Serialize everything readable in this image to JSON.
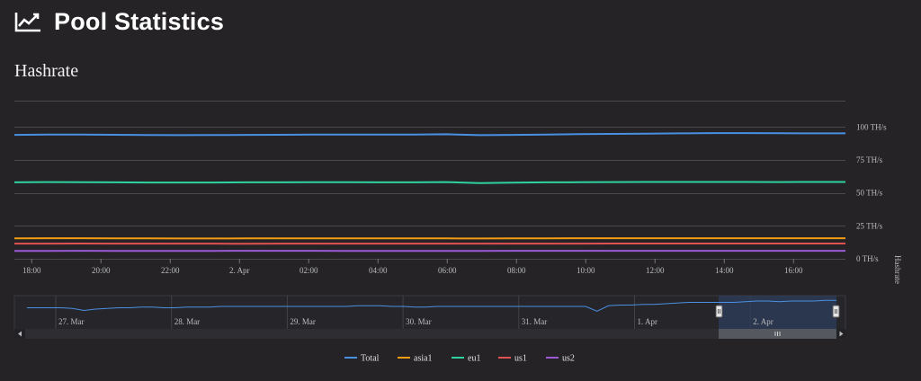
{
  "header": {
    "title": "Pool Statistics",
    "icon": "trending-chart-icon"
  },
  "chart_data": {
    "type": "line",
    "title": "Hashrate",
    "ylabel": "Hashrate",
    "y_unit": "TH/s",
    "ylim": [
      0,
      120
    ],
    "y_ticks": [
      "0 TH/s",
      "25 TH/s",
      "50 TH/s",
      "75 TH/s",
      "100 TH/s"
    ],
    "y_tick_values": [
      0,
      25,
      50,
      75,
      100
    ],
    "x_ticks": [
      "18:00",
      "20:00",
      "22:00",
      "2. Apr",
      "02:00",
      "04:00",
      "06:00",
      "08:00",
      "10:00",
      "12:00",
      "14:00",
      "16:00"
    ],
    "x": [
      "17:30",
      "18:00",
      "19:00",
      "20:00",
      "21:00",
      "22:00",
      "23:00",
      "2. Apr",
      "01:00",
      "02:00",
      "03:00",
      "04:00",
      "05:00",
      "06:00",
      "07:00",
      "08:00",
      "09:00",
      "10:00",
      "11:00",
      "12:00",
      "13:00",
      "14:00",
      "15:00",
      "16:00",
      "17:00",
      "17:30"
    ],
    "series": [
      {
        "name": "Total",
        "color": "#4a90e2",
        "values": [
          94,
          94.3,
          94.2,
          94.1,
          93.9,
          93.8,
          93.9,
          94.0,
          94.1,
          94.2,
          94.3,
          94.2,
          94.3,
          94.5,
          93.8,
          94.0,
          94.3,
          94.6,
          94.8,
          95.0,
          95.2,
          95.4,
          95.4,
          95.3,
          95.2,
          95.2
        ]
      },
      {
        "name": "asia1",
        "color": "#f39c12",
        "values": [
          15.5,
          15.6,
          15.6,
          15.5,
          15.5,
          15.4,
          15.4,
          15.5,
          15.5,
          15.5,
          15.5,
          15.5,
          15.5,
          15.5,
          15.4,
          15.5,
          15.5,
          15.6,
          15.6,
          15.6,
          15.6,
          15.6,
          15.6,
          15.6,
          15.6,
          15.6
        ]
      },
      {
        "name": "eu1",
        "color": "#2fd1a0",
        "values": [
          58,
          58.2,
          58.1,
          58.0,
          57.9,
          57.9,
          57.9,
          58.0,
          58.0,
          58.1,
          58.1,
          58.0,
          58.0,
          58.2,
          57.5,
          57.8,
          58.0,
          58.1,
          58.2,
          58.3,
          58.3,
          58.3,
          58.3,
          58.2,
          58.3,
          58.3
        ]
      },
      {
        "name": "us1",
        "color": "#e05252",
        "values": [
          11.5,
          11.5,
          11.6,
          11.5,
          11.5,
          11.5,
          11.5,
          11.4,
          11.5,
          11.5,
          11.5,
          11.5,
          11.5,
          11.5,
          11.5,
          11.5,
          11.5,
          11.5,
          11.6,
          11.6,
          11.6,
          11.6,
          11.6,
          11.6,
          11.6,
          11.6
        ]
      },
      {
        "name": "us2",
        "color": "#9b59d6",
        "values": [
          6.0,
          6.0,
          6.1,
          6.0,
          6.0,
          6.0,
          6.0,
          6.1,
          6.1,
          6.1,
          6.0,
          6.0,
          6.0,
          6.0,
          6.0,
          6.1,
          6.1,
          6.1,
          6.1,
          6.1,
          6.1,
          6.1,
          6.1,
          6.1,
          6.1,
          6.1
        ]
      }
    ],
    "navigator": {
      "date_labels": [
        "27. Mar",
        "28. Mar",
        "29. Mar",
        "30. Mar",
        "31. Mar",
        "1. Apr",
        "2. Apr"
      ],
      "values": [
        86,
        86,
        86,
        86,
        85,
        82,
        84,
        85,
        86,
        86,
        87,
        87,
        86,
        86,
        87,
        87,
        87,
        88,
        88,
        88,
        88,
        88,
        88,
        88,
        88,
        88,
        88,
        88,
        88,
        89,
        89,
        89,
        88,
        88,
        87,
        87,
        88,
        88,
        88,
        88,
        88,
        88,
        88,
        88,
        88,
        88,
        88,
        88,
        88,
        88,
        81,
        89,
        90,
        90,
        91,
        91,
        92,
        93,
        94,
        94,
        94,
        94,
        94,
        95,
        96,
        96,
        95,
        96,
        96,
        96,
        97,
        97
      ],
      "selected_range": "1. Apr – 2. Apr",
      "series_color": "#4a90e2"
    },
    "legend": [
      "Total",
      "asia1",
      "eu1",
      "us1",
      "us2"
    ],
    "legend_placement": "bottom-center",
    "grid": true
  }
}
